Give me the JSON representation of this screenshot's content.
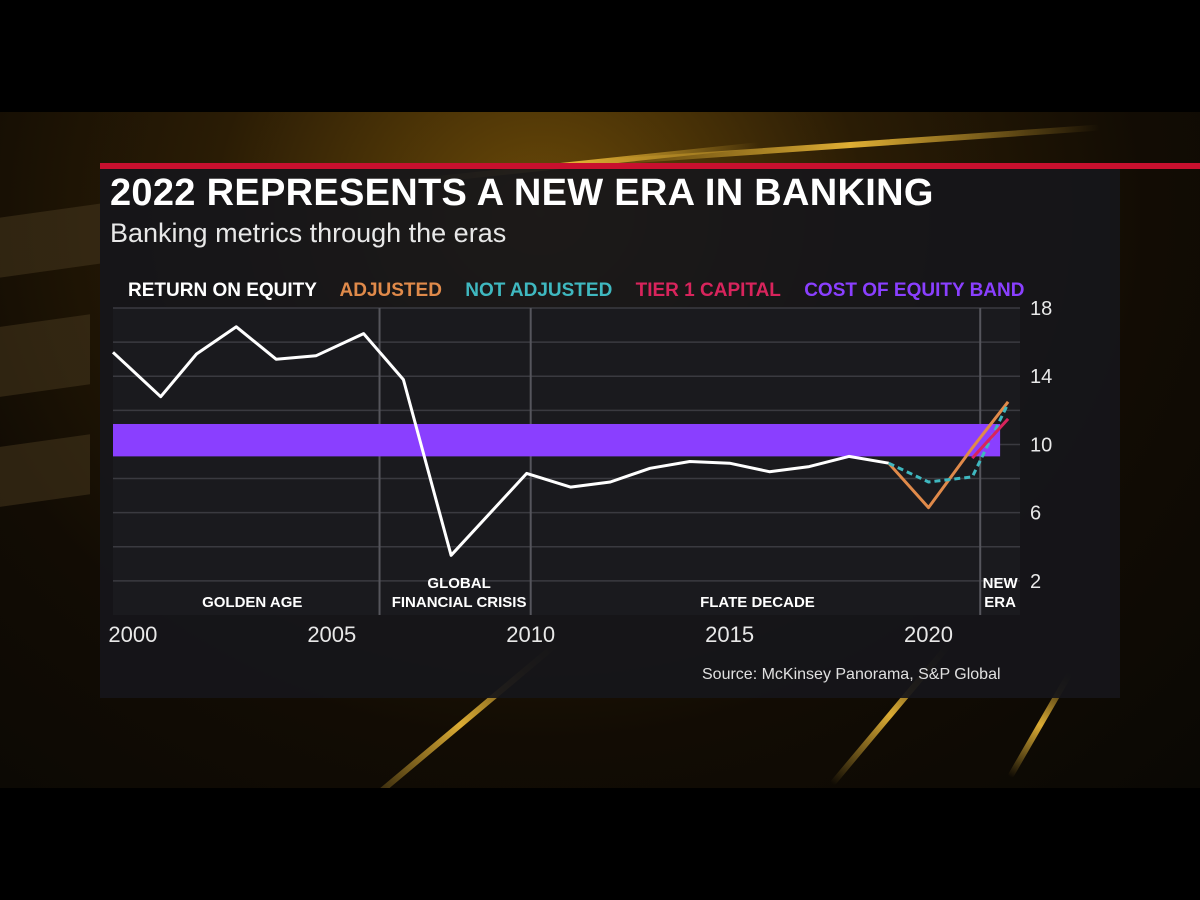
{
  "headline": "2022 REPRESENTS A NEW ERA IN BANKING",
  "subheadline": "Banking metrics through the eras",
  "source": "Source: McKinsey Panorama, S&P Global",
  "colors": {
    "return_on_equity": "#ffffff",
    "adjusted": "#e08a4a",
    "not_adjusted": "#3fb8c0",
    "tier1": "#d8245c",
    "cost_of_equity_band": "#8a3fff",
    "accent_red": "#c8102e"
  },
  "chart_data": {
    "type": "line",
    "legend": [
      "RETURN ON EQUITY",
      "ADJUSTED",
      "NOT ADJUSTED",
      "TIER 1 CAPITAL",
      "COST OF EQUITY BAND"
    ],
    "legend_placement": "top",
    "x_ticks": [
      "2000",
      "2005",
      "2010",
      "2015",
      "2020"
    ],
    "y_ticks": [
      "18",
      "14",
      "10",
      "6",
      "2"
    ],
    "ylim": [
      0,
      18
    ],
    "xlim": [
      1999.5,
      2022.3
    ],
    "grid": true,
    "series": [
      {
        "name": "RETURN ON EQUITY",
        "x": [
          1999.5,
          2000.7,
          2001.6,
          2002.6,
          2003.6,
          2004.6,
          2005.8,
          2006.8,
          2008.0,
          2009.9,
          2011.0,
          2012.0,
          2013.0,
          2014.0,
          2015.0,
          2016.0,
          2017.0,
          2018.0,
          2019.0
        ],
        "values": [
          15.4,
          12.8,
          15.3,
          16.9,
          15.0,
          15.2,
          16.5,
          13.8,
          3.5,
          8.3,
          7.5,
          7.8,
          8.6,
          9.0,
          8.9,
          8.4,
          8.7,
          9.3,
          8.9
        ]
      },
      {
        "name": "ADJUSTED",
        "x": [
          2019.0,
          2020.0,
          2021.1,
          2022.0
        ],
        "values": [
          8.9,
          6.3,
          9.8,
          12.5
        ]
      },
      {
        "name": "NOT ADJUSTED",
        "x": [
          2019.0,
          2020.0,
          2021.1,
          2022.0
        ],
        "values": [
          8.9,
          7.8,
          8.1,
          12.4
        ]
      },
      {
        "name": "TIER 1 CAPITAL",
        "x": [
          2021.1,
          2022.0
        ],
        "values": [
          9.2,
          11.5
        ]
      }
    ],
    "band": {
      "name": "COST OF EQUITY BAND",
      "x_start": 1999.5,
      "x_end": 2021.8,
      "y_low": 9.3,
      "y_high": 11.2
    },
    "eras": [
      {
        "label_lines": [
          "GOLDEN AGE"
        ],
        "x": 2003.0,
        "divider_after": 2006.2
      },
      {
        "label_lines": [
          "GLOBAL",
          "FINANCIAL CRISIS"
        ],
        "x": 2008.2,
        "divider_after": 2010.0
      },
      {
        "label_lines": [
          "FLATE DECADE"
        ],
        "x": 2015.7,
        "divider_after": 2021.3
      },
      {
        "label_lines": [
          "NEW",
          "ERA"
        ],
        "x": 2021.8,
        "divider_after": null
      }
    ]
  }
}
